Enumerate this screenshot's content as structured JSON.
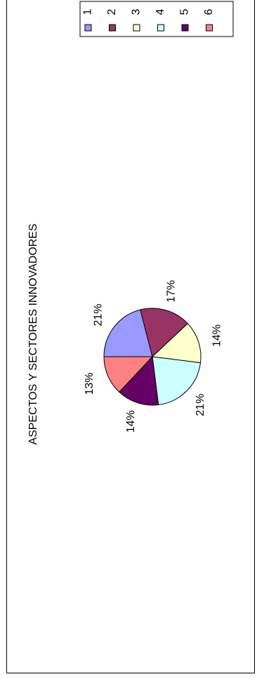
{
  "chart_data": {
    "type": "pie",
    "title": "ASPECTOS Y  SECTORES INNOVADORES",
    "orientation": "rotated-90-ccw",
    "categories": [
      "1",
      "2",
      "3",
      "4",
      "5",
      "6"
    ],
    "values": [
      21,
      17,
      14,
      21,
      14,
      13
    ],
    "labels": [
      "21%",
      "17%",
      "14%",
      "21%",
      "14%",
      "13%"
    ],
    "colors": [
      "#9999FF",
      "#993366",
      "#FFFFCC",
      "#CCFFFF",
      "#660066",
      "#FF8080"
    ],
    "legend_position": "top-right"
  }
}
